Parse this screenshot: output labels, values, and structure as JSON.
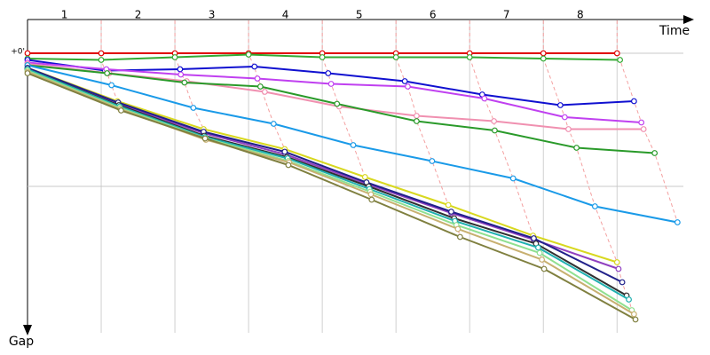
{
  "chart_data": {
    "type": "line",
    "x_label": "Time",
    "y_label": "Gap",
    "xlim": [
      0,
      8.96
    ],
    "ylim": [
      -0.25,
      2.1
    ],
    "xticks": [
      {
        "value": 0.5,
        "label": "1"
      },
      {
        "value": 1.5,
        "label": "2"
      },
      {
        "value": 2.5,
        "label": "3"
      },
      {
        "value": 3.5,
        "label": "4"
      },
      {
        "value": 4.5,
        "label": "5"
      },
      {
        "value": 5.5,
        "label": "6"
      },
      {
        "value": 6.5,
        "label": "7"
      },
      {
        "value": 7.5,
        "label": "8"
      }
    ],
    "xgrid": [
      1,
      2,
      3,
      4,
      5,
      6,
      7,
      8
    ],
    "yticks": [
      {
        "value": 0,
        "label": "+0'"
      }
    ],
    "ygrid": [
      0,
      1
    ],
    "series": [
      {
        "color": "#e00000",
        "x": [
          0,
          1,
          2,
          3,
          4,
          5,
          6,
          7,
          8
        ],
        "values": [
          0,
          0,
          0,
          0,
          0,
          0,
          0,
          0,
          0
        ]
      },
      {
        "color": "#33aa33",
        "x": [
          0,
          1,
          2,
          3,
          4,
          5,
          6,
          7,
          8.04
        ],
        "values": [
          0.04,
          0.05,
          0.03,
          0.01,
          0.03,
          0.03,
          0.03,
          0.04,
          0.05
        ]
      },
      {
        "color": "#1010d0",
        "x": [
          0,
          1.05,
          2.07,
          3.08,
          4.08,
          5.12,
          6.17,
          7.23,
          8.23
        ],
        "values": [
          0.05,
          0.13,
          0.12,
          0.1,
          0.15,
          0.21,
          0.31,
          0.39,
          0.36
        ]
      },
      {
        "color": "#c040f0",
        "x": [
          0,
          1.07,
          2.08,
          3.12,
          4.12,
          5.16,
          6.2,
          7.29,
          8.33
        ],
        "values": [
          0.07,
          0.12,
          0.16,
          0.19,
          0.23,
          0.25,
          0.34,
          0.48,
          0.52
        ]
      },
      {
        "color": "#f090b0",
        "x": [
          0,
          1.11,
          2.16,
          3.22,
          4.23,
          5.28,
          6.33,
          7.34,
          8.36
        ],
        "values": [
          0.08,
          0.15,
          0.21,
          0.29,
          0.4,
          0.47,
          0.51,
          0.57,
          0.57
        ]
      },
      {
        "color": "#2a9a2a",
        "x": [
          0,
          1.08,
          2.13,
          3.16,
          4.2,
          5.28,
          6.34,
          7.45,
          8.51
        ],
        "values": [
          0.09,
          0.15,
          0.22,
          0.25,
          0.38,
          0.51,
          0.58,
          0.71,
          0.75
        ]
      },
      {
        "color": "#1a9ae8",
        "x": [
          0,
          1.14,
          2.25,
          3.34,
          4.42,
          5.49,
          6.59,
          7.7,
          8.82
        ],
        "values": [
          0.09,
          0.24,
          0.41,
          0.53,
          0.69,
          0.81,
          0.94,
          1.15,
          1.27
        ]
      },
      {
        "color": "#d8d820",
        "x": [
          0,
          1.22,
          2.39,
          3.49,
          4.58,
          5.71,
          6.86,
          8.0
        ],
        "values": [
          0.11,
          0.36,
          0.57,
          0.72,
          0.93,
          1.14,
          1.37,
          1.57
        ]
      },
      {
        "color": "#9040c0",
        "x": [
          0,
          1.23,
          2.39,
          3.5,
          4.6,
          5.75,
          6.87,
          8.02
        ],
        "values": [
          0.11,
          0.38,
          0.6,
          0.76,
          0.98,
          1.2,
          1.4,
          1.62
        ]
      },
      {
        "color": "#20208a",
        "x": [
          0,
          1.23,
          2.39,
          3.49,
          4.6,
          5.75,
          6.87,
          8.07
        ],
        "values": [
          0.11,
          0.37,
          0.59,
          0.74,
          0.97,
          1.19,
          1.39,
          1.72
        ]
      },
      {
        "color": "#303030",
        "x": [
          0,
          1.24,
          2.4,
          3.52,
          4.63,
          5.79,
          6.9,
          8.13
        ],
        "values": [
          0.12,
          0.39,
          0.62,
          0.78,
          1.0,
          1.24,
          1.43,
          1.82
        ]
      },
      {
        "color": "#20b0b0",
        "x": [
          0,
          1.25,
          2.41,
          3.53,
          4.64,
          5.8,
          6.93,
          8.16
        ],
        "values": [
          0.12,
          0.4,
          0.63,
          0.79,
          1.02,
          1.26,
          1.46,
          1.85
        ]
      },
      {
        "color": "#90e090",
        "x": [
          0,
          1.25,
          2.42,
          3.54,
          4.65,
          5.82,
          6.95,
          8.2
        ],
        "values": [
          0.13,
          0.41,
          0.64,
          0.81,
          1.04,
          1.29,
          1.5,
          1.93
        ]
      },
      {
        "color": "#c8b070",
        "x": [
          0,
          1.26,
          2.42,
          3.55,
          4.66,
          5.84,
          6.98,
          8.23
        ],
        "values": [
          0.14,
          0.42,
          0.65,
          0.82,
          1.06,
          1.32,
          1.55,
          1.96
        ]
      },
      {
        "color": "#808040",
        "x": [
          0,
          1.27,
          2.41,
          3.54,
          4.67,
          5.87,
          7.01,
          8.25
        ],
        "values": [
          0.15,
          0.43,
          0.64,
          0.84,
          1.1,
          1.38,
          1.62,
          2.0
        ]
      }
    ]
  }
}
